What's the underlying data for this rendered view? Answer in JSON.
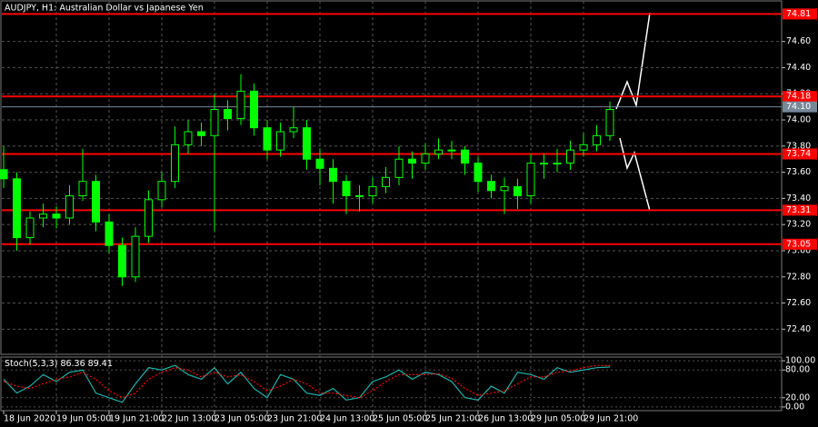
{
  "chart_data": {
    "type": "candlestick",
    "title": "AUDJPY, H1: Australian Dollar vs Japanese Yen",
    "color": "#00ff00",
    "grid": true,
    "categories": [
      "18 Jun 2020",
      null,
      null,
      null,
      "19 Jun 05:00",
      null,
      null,
      null,
      "19 Jun 21:00",
      null,
      null,
      null,
      "22 Jun 13:00",
      null,
      null,
      null,
      "23 Jun 05:00",
      null,
      null,
      null,
      "23 Jun 21:00",
      null,
      null,
      null,
      "24 Jun 13:00",
      null,
      null,
      null,
      "25 Jun 05:00",
      null,
      null,
      null,
      "25 Jun 21:00",
      null,
      null,
      null,
      "26 Jun 13:00",
      null,
      null,
      null,
      "29 Jun 05:00",
      null,
      null,
      null,
      "29 Jun 21:00",
      null,
      null
    ],
    "candles": [
      {
        "open": 73.62,
        "high": 73.8,
        "low": 73.48,
        "close": 73.55
      },
      {
        "open": 73.55,
        "high": 73.6,
        "low": 73.0,
        "close": 73.1
      },
      {
        "open": 73.1,
        "high": 73.3,
        "low": 73.05,
        "close": 73.25
      },
      {
        "open": 73.25,
        "high": 73.36,
        "low": 73.18,
        "close": 73.28
      },
      {
        "open": 73.28,
        "high": 73.34,
        "low": 73.17,
        "close": 73.25
      },
      {
        "open": 73.25,
        "high": 73.5,
        "low": 73.2,
        "close": 73.42
      },
      {
        "open": 73.42,
        "high": 73.78,
        "low": 73.38,
        "close": 73.53
      },
      {
        "open": 73.53,
        "high": 73.58,
        "low": 73.15,
        "close": 73.22
      },
      {
        "open": 73.22,
        "high": 73.28,
        "low": 72.98,
        "close": 73.04
      },
      {
        "open": 73.04,
        "high": 73.1,
        "low": 72.73,
        "close": 72.8
      },
      {
        "open": 72.8,
        "high": 73.18,
        "low": 72.76,
        "close": 73.11
      },
      {
        "open": 73.11,
        "high": 73.46,
        "low": 73.06,
        "close": 73.39
      },
      {
        "open": 73.39,
        "high": 73.6,
        "low": 73.33,
        "close": 73.53
      },
      {
        "open": 73.53,
        "high": 73.95,
        "low": 73.48,
        "close": 73.81
      },
      {
        "open": 73.81,
        "high": 74.0,
        "low": 73.74,
        "close": 73.91
      },
      {
        "open": 73.91,
        "high": 73.98,
        "low": 73.8,
        "close": 73.88
      },
      {
        "open": 73.88,
        "high": 74.2,
        "low": 73.15,
        "close": 74.08
      },
      {
        "open": 74.08,
        "high": 74.15,
        "low": 73.92,
        "close": 74.01
      },
      {
        "open": 74.01,
        "high": 74.35,
        "low": 73.96,
        "close": 74.22
      },
      {
        "open": 74.22,
        "high": 74.28,
        "low": 73.88,
        "close": 73.94
      },
      {
        "open": 73.94,
        "high": 74.0,
        "low": 73.7,
        "close": 73.77
      },
      {
        "open": 73.77,
        "high": 73.98,
        "low": 73.72,
        "close": 73.91
      },
      {
        "open": 73.91,
        "high": 74.1,
        "low": 73.86,
        "close": 73.94
      },
      {
        "open": 73.94,
        "high": 74.0,
        "low": 73.62,
        "close": 73.7
      },
      {
        "open": 73.7,
        "high": 73.78,
        "low": 73.5,
        "close": 73.63
      },
      {
        "open": 73.63,
        "high": 73.7,
        "low": 73.36,
        "close": 73.53
      },
      {
        "open": 73.53,
        "high": 73.58,
        "low": 73.28,
        "close": 73.42
      },
      {
        "open": 73.42,
        "high": 73.5,
        "low": 73.3,
        "close": 73.42
      },
      {
        "open": 73.42,
        "high": 73.56,
        "low": 73.36,
        "close": 73.49
      },
      {
        "open": 73.49,
        "high": 73.64,
        "low": 73.44,
        "close": 73.56
      },
      {
        "open": 73.56,
        "high": 73.8,
        "low": 73.5,
        "close": 73.7
      },
      {
        "open": 73.7,
        "high": 73.76,
        "low": 73.55,
        "close": 73.67
      },
      {
        "open": 73.67,
        "high": 73.82,
        "low": 73.62,
        "close": 73.74
      },
      {
        "open": 73.74,
        "high": 73.86,
        "low": 73.7,
        "close": 73.77
      },
      {
        "open": 73.77,
        "high": 73.84,
        "low": 73.7,
        "close": 73.77
      },
      {
        "open": 73.77,
        "high": 73.8,
        "low": 73.58,
        "close": 73.67
      },
      {
        "open": 73.67,
        "high": 73.72,
        "low": 73.45,
        "close": 73.53
      },
      {
        "open": 73.53,
        "high": 73.58,
        "low": 73.4,
        "close": 73.46
      },
      {
        "open": 73.46,
        "high": 73.56,
        "low": 73.28,
        "close": 73.49
      },
      {
        "open": 73.49,
        "high": 73.55,
        "low": 73.32,
        "close": 73.42
      },
      {
        "open": 73.42,
        "high": 73.74,
        "low": 73.36,
        "close": 73.67
      },
      {
        "open": 73.67,
        "high": 73.74,
        "low": 73.55,
        "close": 73.67
      },
      {
        "open": 73.67,
        "high": 73.78,
        "low": 73.6,
        "close": 73.67
      },
      {
        "open": 73.67,
        "high": 73.84,
        "low": 73.62,
        "close": 73.77
      },
      {
        "open": 73.77,
        "high": 73.9,
        "low": 73.72,
        "close": 73.81
      },
      {
        "open": 73.81,
        "high": 73.96,
        "low": 73.76,
        "close": 73.88
      },
      {
        "open": 73.88,
        "high": 74.14,
        "low": 73.84,
        "close": 74.08
      }
    ],
    "ylim": [
      72.208,
      74.917
    ],
    "yticks": [
      {
        "value": 72.4,
        "label": "72.40"
      },
      {
        "value": 72.6,
        "label": "72.60"
      },
      {
        "value": 72.8,
        "label": "72.80"
      },
      {
        "value": 73.0,
        "label": "73.00"
      },
      {
        "value": 73.2,
        "label": "73.20"
      },
      {
        "value": 73.4,
        "label": "73.40"
      },
      {
        "value": 73.6,
        "label": "73.60"
      },
      {
        "value": 73.8,
        "label": "73.80"
      },
      {
        "value": 74.0,
        "label": "74.00"
      },
      {
        "value": 74.2,
        "label": "74.20"
      },
      {
        "value": 74.4,
        "label": "74.40"
      },
      {
        "value": 74.6,
        "label": "74.60"
      }
    ],
    "levels": [
      {
        "value": 74.81,
        "label": "74.81",
        "color": "#ff0000"
      },
      {
        "value": 74.18,
        "label": "74.18",
        "color": "#ff0000"
      },
      {
        "value": 73.74,
        "label": "73.74",
        "color": "#ff0000"
      },
      {
        "value": 73.31,
        "label": "73.31",
        "color": "#ff0000"
      },
      {
        "value": 73.05,
        "label": "73.05",
        "color": "#ff0000"
      }
    ],
    "current": {
      "value": 74.1,
      "label": "74.10",
      "color": "#778899"
    },
    "indicator": {
      "type": "line",
      "name": "Stoch(5,3,3)",
      "ylim": [
        -8,
        108
      ],
      "yticks": [
        {
          "value": 0,
          "label": "0.00"
        },
        {
          "value": 20,
          "label": "20.00"
        },
        {
          "value": 80,
          "label": "80.00"
        },
        {
          "value": 100,
          "label": "100.00"
        }
      ],
      "series": [
        {
          "color": "#20b2aa",
          "values": [
            60,
            30,
            45,
            70,
            55,
            75,
            80,
            30,
            20,
            10,
            50,
            85,
            80,
            90,
            70,
            60,
            85,
            50,
            75,
            40,
            20,
            70,
            60,
            30,
            25,
            40,
            15,
            20,
            55,
            65,
            80,
            60,
            75,
            70,
            55,
            20,
            15,
            45,
            30,
            75,
            70,
            60,
            85,
            75,
            80,
            85,
            86.36
          ]
        },
        {
          "color": "#ff0000",
          "values": [
            55,
            45,
            40,
            50,
            60,
            65,
            75,
            60,
            35,
            20,
            30,
            60,
            75,
            85,
            80,
            65,
            75,
            65,
            70,
            55,
            35,
            45,
            60,
            50,
            30,
            30,
            25,
            20,
            35,
            55,
            70,
            70,
            70,
            72,
            62,
            40,
            25,
            30,
            35,
            50,
            65,
            65,
            75,
            78,
            85,
            90,
            89.41
          ]
        }
      ]
    }
  }
}
